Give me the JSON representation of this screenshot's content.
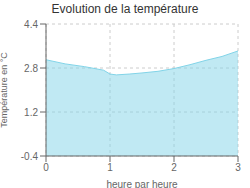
{
  "chart_data": {
    "type": "area",
    "title": "Evolution de la température",
    "xlabel": "heure par heure",
    "ylabel": "Température en °C",
    "x": [
      0,
      0.3,
      0.6,
      0.9,
      1.0,
      1.1,
      1.3,
      1.5,
      1.75,
      2.0,
      2.25,
      2.5,
      2.75,
      3.0
    ],
    "values": [
      3.1,
      2.95,
      2.85,
      2.72,
      2.58,
      2.55,
      2.58,
      2.62,
      2.68,
      2.78,
      2.92,
      3.08,
      3.22,
      3.42
    ],
    "color": "#82d4e8",
    "xlim": [
      0,
      3
    ],
    "ylim": [
      -0.4,
      4.4
    ],
    "xticks": [
      0,
      1,
      2,
      3
    ],
    "yticks": [
      -0.4,
      1.2,
      2.8,
      4.4
    ],
    "grid": true
  }
}
